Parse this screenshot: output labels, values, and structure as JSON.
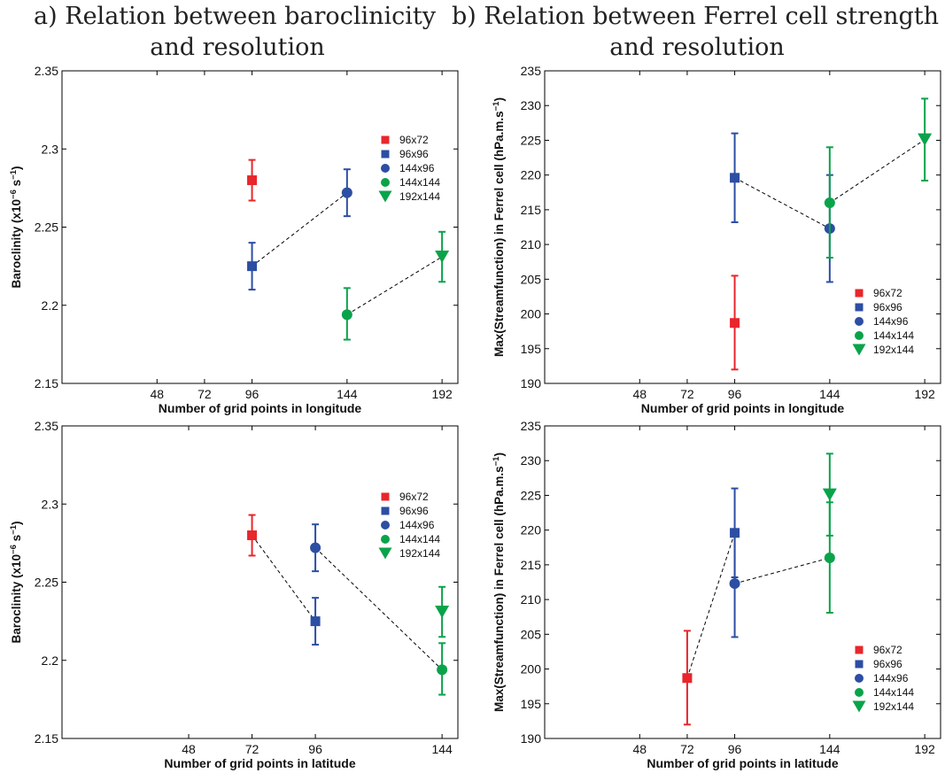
{
  "titles": {
    "a_line1": "a) Relation between baroclinicity",
    "a_line2": "and resolution",
    "b_line1": "b) Relation between Ferrel cell strength",
    "b_line2": "and resolution"
  },
  "colors": {
    "96x72": "#e8262b",
    "96x96": "#2c4ea3",
    "144x96": "#2c4ea3",
    "144x144": "#0aa34a",
    "192x144": "#0aa34a",
    "connector": "#000000"
  },
  "chart_data": [
    {
      "type": "scatter",
      "xlabel": "Number of grid points in longitude",
      "ylabel": "Baroclinity (x10",
      "ylabel_sup": "−6",
      "ylabel_mid": " s",
      "ylabel_sup2": "−1",
      "ylabel_end": ")",
      "xlim": [
        0,
        200
      ],
      "ylim": [
        2.15,
        2.35
      ],
      "xticks": [
        48,
        72,
        96,
        144,
        192
      ],
      "yticks": [
        "2.15",
        "2.2",
        "2.25",
        "2.3",
        "2.35"
      ],
      "legend_position": "upper-right",
      "series": [
        {
          "name": "96x72",
          "marker": "square",
          "points": [
            {
              "x": 96,
              "y": 2.28,
              "lo": 2.267,
              "hi": 2.293
            }
          ]
        },
        {
          "name": "96x96",
          "marker": "square",
          "points": [
            {
              "x": 96,
              "y": 2.225,
              "lo": 2.21,
              "hi": 2.24
            }
          ]
        },
        {
          "name": "144x96",
          "marker": "circle",
          "points": [
            {
              "x": 144,
              "y": 2.272,
              "lo": 2.257,
              "hi": 2.287
            }
          ]
        },
        {
          "name": "144x144",
          "marker": "circle",
          "points": [
            {
              "x": 144,
              "y": 2.194,
              "lo": 2.178,
              "hi": 2.211
            }
          ]
        },
        {
          "name": "192x144",
          "marker": "triangle",
          "points": [
            {
              "x": 192,
              "y": 2.231,
              "lo": 2.215,
              "hi": 2.247
            }
          ]
        }
      ],
      "connectors": [
        [
          {
            "x": 96,
            "y": 2.225
          },
          {
            "x": 144,
            "y": 2.272
          }
        ],
        [
          {
            "x": 144,
            "y": 2.194
          },
          {
            "x": 192,
            "y": 2.231
          }
        ]
      ]
    },
    {
      "type": "scatter",
      "xlabel": "Number of grid points in longitude",
      "ylabel": "Max(Streamfunction) in Ferrel cell (hPa.m.s",
      "ylabel_sup": "−1",
      "ylabel_end": ")",
      "xlim": [
        0,
        200
      ],
      "ylim": [
        190,
        235
      ],
      "xticks": [
        48,
        72,
        96,
        144,
        192
      ],
      "yticks": [
        "190",
        "195",
        "200",
        "205",
        "210",
        "215",
        "220",
        "225",
        "230",
        "235"
      ],
      "legend_position": "lower-right",
      "series": [
        {
          "name": "96x72",
          "marker": "square",
          "points": [
            {
              "x": 96,
              "y": 198.7,
              "lo": 192.0,
              "hi": 205.5
            }
          ]
        },
        {
          "name": "96x96",
          "marker": "square",
          "points": [
            {
              "x": 96,
              "y": 219.6,
              "lo": 213.2,
              "hi": 226.0
            }
          ]
        },
        {
          "name": "144x96",
          "marker": "circle",
          "points": [
            {
              "x": 144,
              "y": 212.3,
              "lo": 204.6,
              "hi": 220.0
            }
          ]
        },
        {
          "name": "144x144",
          "marker": "circle",
          "points": [
            {
              "x": 144,
              "y": 216.0,
              "lo": 208.1,
              "hi": 224.0
            }
          ]
        },
        {
          "name": "192x144",
          "marker": "triangle",
          "points": [
            {
              "x": 192,
              "y": 225.1,
              "lo": 219.2,
              "hi": 231.0
            }
          ]
        }
      ],
      "connectors": [
        [
          {
            "x": 96,
            "y": 219.6
          },
          {
            "x": 144,
            "y": 212.3
          }
        ],
        [
          {
            "x": 144,
            "y": 216.0
          },
          {
            "x": 192,
            "y": 225.1
          }
        ]
      ]
    },
    {
      "type": "scatter",
      "xlabel": "Number of grid points in latitude",
      "ylabel": "Baroclinity (x10",
      "ylabel_sup": "−6",
      "ylabel_mid": " s",
      "ylabel_sup2": "−1",
      "ylabel_end": ")",
      "xlim": [
        0,
        150
      ],
      "ylim": [
        2.15,
        2.35
      ],
      "xticks": [
        48,
        72,
        96,
        144
      ],
      "yticks": [
        "2.15",
        "2.2",
        "2.25",
        "2.3",
        "2.35"
      ],
      "legend_position": "upper-right",
      "series": [
        {
          "name": "96x72",
          "marker": "square",
          "points": [
            {
              "x": 72,
              "y": 2.28,
              "lo": 2.267,
              "hi": 2.293
            }
          ]
        },
        {
          "name": "96x96",
          "marker": "square",
          "points": [
            {
              "x": 96,
              "y": 2.225,
              "lo": 2.21,
              "hi": 2.24
            }
          ]
        },
        {
          "name": "144x96",
          "marker": "circle",
          "points": [
            {
              "x": 96,
              "y": 2.272,
              "lo": 2.257,
              "hi": 2.287
            }
          ]
        },
        {
          "name": "144x144",
          "marker": "circle",
          "points": [
            {
              "x": 144,
              "y": 2.194,
              "lo": 2.178,
              "hi": 2.211
            }
          ]
        },
        {
          "name": "192x144",
          "marker": "triangle",
          "points": [
            {
              "x": 144,
              "y": 2.231,
              "lo": 2.215,
              "hi": 2.247
            }
          ]
        }
      ],
      "connectors": [
        [
          {
            "x": 72,
            "y": 2.28
          },
          {
            "x": 96,
            "y": 2.225
          }
        ],
        [
          {
            "x": 96,
            "y": 2.272
          },
          {
            "x": 144,
            "y": 2.194
          }
        ]
      ]
    },
    {
      "type": "scatter",
      "xlabel": "Number of grid points in latitude",
      "ylabel": "Max(Streamfunction) in Ferrel cell (hPa.m.s",
      "ylabel_sup": "−1",
      "ylabel_end": ")",
      "xlim": [
        0,
        200
      ],
      "ylim": [
        190,
        235
      ],
      "xticks": [
        48,
        72,
        96,
        144,
        192
      ],
      "yticks": [
        "190",
        "195",
        "200",
        "205",
        "210",
        "215",
        "220",
        "225",
        "230",
        "235"
      ],
      "legend_position": "lower-right",
      "series": [
        {
          "name": "96x72",
          "marker": "square",
          "points": [
            {
              "x": 72,
              "y": 198.7,
              "lo": 192.0,
              "hi": 205.5
            }
          ]
        },
        {
          "name": "96x96",
          "marker": "square",
          "points": [
            {
              "x": 96,
              "y": 219.6,
              "lo": 213.2,
              "hi": 226.0
            }
          ]
        },
        {
          "name": "144x96",
          "marker": "circle",
          "points": [
            {
              "x": 96,
              "y": 212.3,
              "lo": 204.6,
              "hi": 220.0
            }
          ]
        },
        {
          "name": "144x144",
          "marker": "circle",
          "points": [
            {
              "x": 144,
              "y": 216.0,
              "lo": 208.1,
              "hi": 224.0
            }
          ]
        },
        {
          "name": "192x144",
          "marker": "triangle",
          "points": [
            {
              "x": 144,
              "y": 225.1,
              "lo": 219.2,
              "hi": 231.0
            }
          ]
        }
      ],
      "connectors": [
        [
          {
            "x": 72,
            "y": 198.7
          },
          {
            "x": 96,
            "y": 219.6
          }
        ],
        [
          {
            "x": 96,
            "y": 212.3
          },
          {
            "x": 144,
            "y": 216.0
          }
        ]
      ]
    }
  ]
}
